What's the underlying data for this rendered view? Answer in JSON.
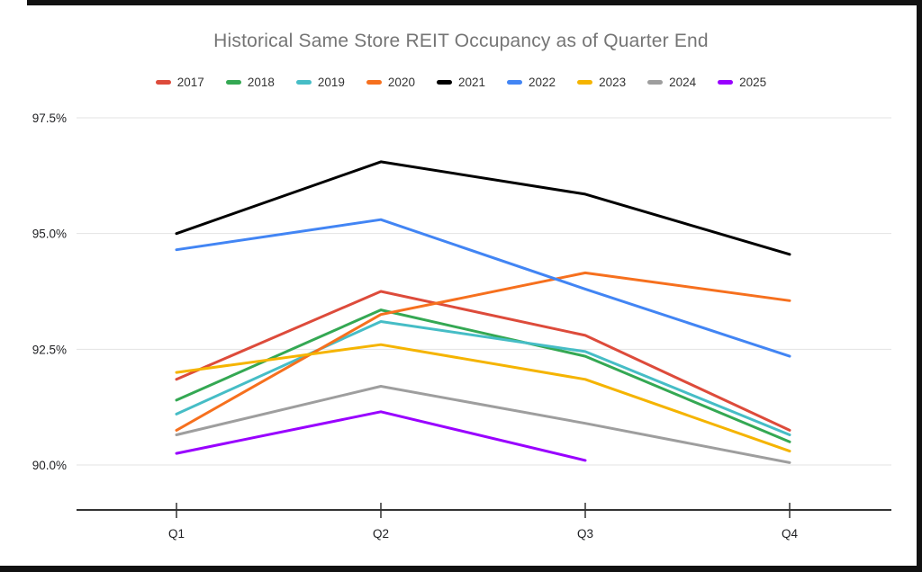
{
  "chart_data": {
    "type": "line",
    "title": "Historical Same Store REIT Occupancy as of Quarter End",
    "categories": [
      "Q1",
      "Q2",
      "Q3",
      "Q4"
    ],
    "series": [
      {
        "name": "2017",
        "color": "#DD4B3B",
        "values": [
          91.85,
          93.75,
          92.8,
          90.75
        ]
      },
      {
        "name": "2018",
        "color": "#34A853",
        "values": [
          91.4,
          93.35,
          92.35,
          90.5
        ]
      },
      {
        "name": "2019",
        "color": "#46BDC6",
        "values": [
          91.1,
          93.1,
          92.45,
          90.65
        ]
      },
      {
        "name": "2020",
        "color": "#F6701E",
        "values": [
          90.75,
          93.25,
          94.15,
          93.55
        ]
      },
      {
        "name": "2021",
        "color": "#000000",
        "values": [
          95.0,
          96.55,
          95.85,
          94.55
        ]
      },
      {
        "name": "2022",
        "color": "#4285F4",
        "values": [
          94.65,
          95.3,
          93.8,
          92.35
        ]
      },
      {
        "name": "2023",
        "color": "#F5B400",
        "values": [
          92.0,
          92.6,
          91.85,
          90.3
        ]
      },
      {
        "name": "2024",
        "color": "#9E9E9E",
        "values": [
          90.65,
          91.7,
          90.9,
          90.05
        ]
      },
      {
        "name": "2025",
        "color": "#9900FF",
        "values": [
          90.25,
          91.15,
          90.1,
          null
        ]
      }
    ],
    "yticks": [
      {
        "label": "97.5%",
        "value": 97.5
      },
      {
        "label": "95.0%",
        "value": 95.0
      },
      {
        "label": "92.5%",
        "value": 92.5
      },
      {
        "label": "90.0%",
        "value": 90.0
      }
    ],
    "ylim": [
      90.0,
      97.5
    ],
    "xlabel": "",
    "ylabel": "",
    "grid": true,
    "legend_position": "top",
    "styles": {
      "title_color": "#757575",
      "grid_color": "#e3e3e3",
      "axis_color": "#333333",
      "tick_color": "#333333",
      "label_color": "#202124",
      "background": "#ffffff"
    }
  }
}
